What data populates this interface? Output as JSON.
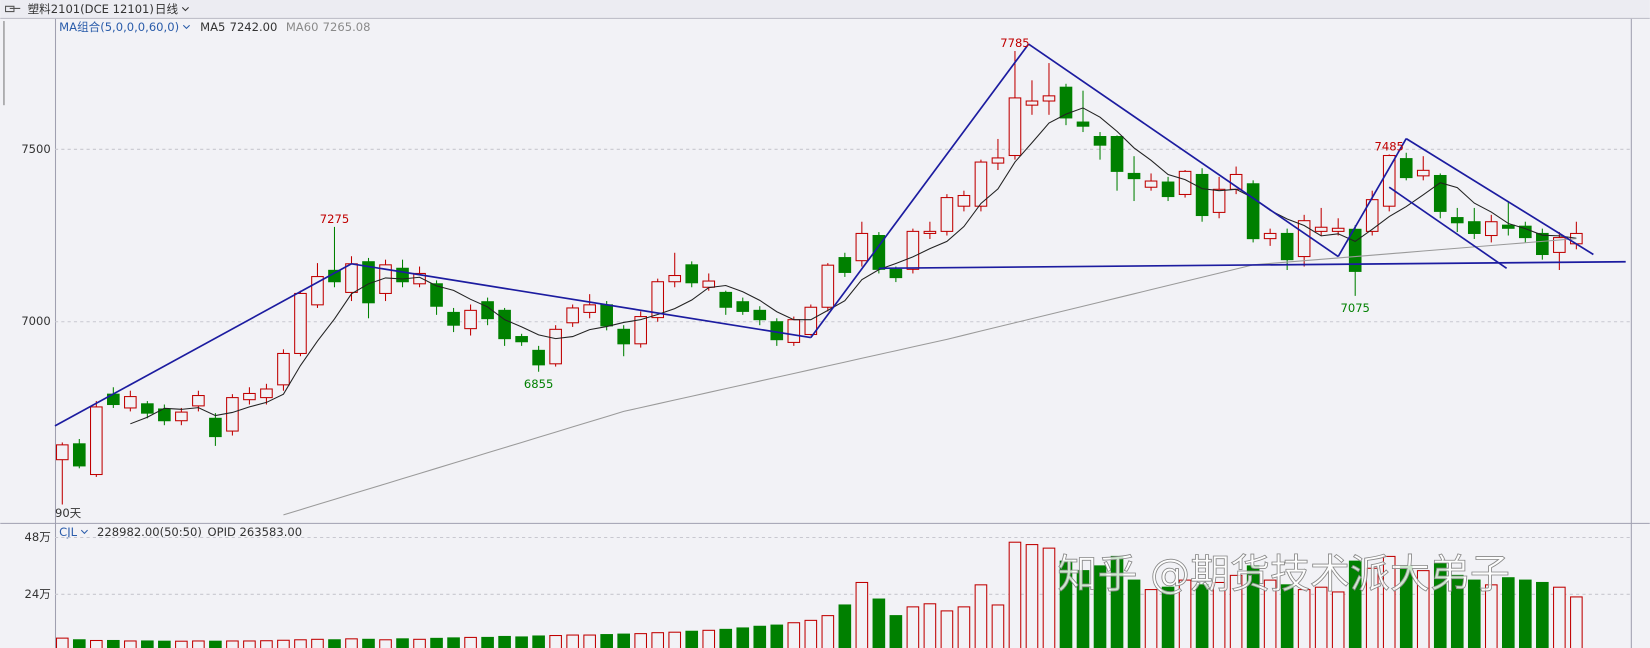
{
  "chart_data": {
    "type": "candlestick",
    "title": "塑料2101(DCE 12101)",
    "period": "日线",
    "indicator": "MA组合(5,0,0,0,60,0)",
    "span_label": "90天",
    "categories": [
      null,
      null,
      null,
      null,
      null,
      null,
      null,
      null,
      null,
      null,
      null,
      null,
      null,
      null,
      null,
      null,
      null,
      null,
      null,
      null,
      null,
      null,
      null,
      null,
      null,
      null,
      null,
      null,
      null,
      null,
      null,
      null,
      null,
      null,
      null,
      null,
      null,
      null,
      null,
      null,
      null,
      null,
      null,
      null,
      null,
      null,
      null,
      null,
      null,
      null,
      null,
      null,
      null,
      null,
      null,
      null,
      null,
      null,
      null,
      null,
      null,
      null,
      null,
      null,
      null,
      null,
      null,
      null,
      null,
      null,
      null,
      null,
      null,
      null,
      null,
      null,
      null,
      null,
      null,
      null,
      null,
      null,
      null,
      null,
      null,
      null,
      null,
      null,
      null,
      null
    ],
    "open": [
      6600,
      6646,
      6557,
      6790,
      6750,
      6762,
      6747,
      6713,
      6756,
      6720,
      6683,
      6774,
      6780,
      6817,
      6908,
      7049,
      7149,
      7085,
      7174,
      7082,
      7155,
      7110,
      7110,
      7027,
      6980,
      7058,
      7033,
      6957,
      6917,
      6878,
      6997,
      7027,
      7049,
      6978,
      6936,
      7012,
      7116,
      7165,
      7100,
      7085,
      7058,
      7033,
      7000,
      6940,
      6963,
      7042,
      7186,
      7177,
      7250,
      7152,
      7152,
      7256,
      7262,
      7335,
      7335,
      7460,
      7482,
      7628,
      7640,
      7680,
      7579,
      7537,
      7537,
      7430,
      7390,
      7405,
      7369,
      7427,
      7317,
      7384,
      7400,
      7241,
      7256,
      7189,
      7262,
      7262,
      7268,
      7262,
      7335,
      7473,
      7423,
      7424,
      7302,
      7290,
      7250,
      7280,
      7277,
      7256,
      7201,
      7226
    ],
    "high": [
      6650,
      6660,
      6770,
      6810,
      6800,
      6770,
      6760,
      6750,
      6800,
      6735,
      6790,
      6810,
      6820,
      6920,
      7090,
      7170,
      7275,
      7190,
      7185,
      7180,
      7180,
      7160,
      7120,
      7040,
      7050,
      7070,
      7040,
      6965,
      6930,
      6990,
      7050,
      7080,
      7060,
      6990,
      7030,
      7125,
      7200,
      7175,
      7140,
      7090,
      7070,
      7045,
      7010,
      7015,
      7050,
      7170,
      7200,
      7290,
      7260,
      7160,
      7270,
      7290,
      7370,
      7380,
      7470,
      7530,
      7785,
      7700,
      7750,
      7690,
      7670,
      7550,
      7540,
      7480,
      7430,
      7420,
      7440,
      7445,
      7420,
      7450,
      7410,
      7270,
      7270,
      7310,
      7330,
      7300,
      7280,
      7380,
      7485,
      7490,
      7480,
      7430,
      7330,
      7330,
      7310,
      7350,
      7290,
      7270,
      7260,
      7290
    ],
    "low": [
      6470,
      6575,
      6550,
      6750,
      6740,
      6720,
      6700,
      6700,
      6740,
      6640,
      6670,
      6760,
      6760,
      6800,
      6900,
      7040,
      7100,
      7060,
      7010,
      7060,
      7100,
      7100,
      7020,
      6970,
      6960,
      6990,
      6930,
      6930,
      6855,
      6870,
      6985,
      7010,
      6975,
      6900,
      6925,
      7000,
      7100,
      7100,
      7090,
      7020,
      7020,
      6990,
      6930,
      6930,
      6960,
      7030,
      7130,
      7160,
      7140,
      7115,
      7140,
      7240,
      7250,
      7320,
      7320,
      7440,
      7470,
      7600,
      7600,
      7570,
      7550,
      7470,
      7380,
      7350,
      7380,
      7350,
      7360,
      7290,
      7300,
      7370,
      7230,
      7220,
      7150,
      7160,
      7250,
      7250,
      7075,
      7250,
      7320,
      7410,
      7410,
      7300,
      7260,
      7240,
      7230,
      7250,
      7230,
      7180,
      7150,
      7210
    ],
    "close": [
      6643,
      6582,
      6753,
      6760,
      6783,
      6735,
      6713,
      6738,
      6786,
      6667,
      6780,
      6792,
      6805,
      6908,
      7082,
      7131,
      7116,
      7168,
      7055,
      7165,
      7116,
      7140,
      7045,
      6990,
      7033,
      7009,
      6951,
      6942,
      6875,
      6978,
      7040,
      7049,
      6988,
      6936,
      7015,
      7116,
      7134,
      7113,
      7118,
      7042,
      7030,
      7006,
      6948,
      7006,
      7042,
      7164,
      7143,
      7256,
      7152,
      7128,
      7262,
      7262,
      7360,
      7366,
      7463,
      7475,
      7649,
      7640,
      7655,
      7591,
      7567,
      7512,
      7436,
      7415,
      7408,
      7363,
      7436,
      7308,
      7384,
      7427,
      7241,
      7256,
      7180,
      7293,
      7274,
      7271,
      7146,
      7354,
      7482,
      7418,
      7439,
      7320,
      7287,
      7256,
      7290,
      7271,
      7244,
      7195,
      7244,
      7256
    ],
    "up_color": "#c00000",
    "down_color": "#008000",
    "series": [
      {
        "name": "MA5",
        "value_label": "7242.00",
        "color": "#222222",
        "label_color": "#333333",
        "values": [
          null,
          null,
          null,
          null,
          6704,
          6723,
          6749,
          6746,
          6751,
          6728,
          6737,
          6753,
          6766,
          6790,
          6873,
          6944,
          7008,
          7081,
          7110,
          7127,
          7124,
          7129,
          7104,
          7091,
          7065,
          7043,
          7006,
          6985,
          6962,
          6951,
          6957,
          6977,
          6986,
          6998,
          7006,
          7021,
          7038,
          7063,
          7099,
          7105,
          7087,
          7062,
          7029,
          7006,
          7006,
          7033,
          7061,
          7122,
          7151,
          7169,
          7188,
          7212,
          7233,
          7276,
          7343,
          7385,
          7463,
          7519,
          7576,
          7602,
          7620,
          7593,
          7552,
          7504,
          7468,
          7427,
          7412,
          7386,
          7380,
          7384,
          7359,
          7323,
          7298,
          7279,
          7249,
          7255,
          7233,
          7268,
          7305,
          7334,
          7368,
          7403,
          7389,
          7344,
          7318,
          7285,
          7270,
          7251,
          7249,
          7242
        ]
      },
      {
        "name": "MA60",
        "value_label": "7265.08",
        "color": "#9a9a9a",
        "label_color": "#8a8a8a",
        "values": [
          null,
          null,
          null,
          null,
          null,
          null,
          null,
          null,
          null,
          null,
          null,
          null,
          null,
          6440,
          6455,
          6470,
          6485,
          6500,
          6515,
          6530,
          6545,
          6560,
          6575,
          6590,
          6605,
          6620,
          6635,
          6650,
          6665,
          6680,
          6695,
          6710,
          6725,
          6740,
          6751,
          6762,
          6773,
          6784,
          6795,
          6806,
          6817,
          6828,
          6839,
          6850,
          6861,
          6872,
          6883,
          6894,
          6905,
          6916,
          6927,
          6938,
          6949,
          6961,
          6973,
          6985,
          6997,
          7009,
          7021,
          7033,
          7045,
          7057,
          7069,
          7081,
          7093,
          7105,
          7117,
          7129,
          7141,
          7153,
          7165,
          7169,
          7173,
          7177,
          7181,
          7185,
          7189,
          7193,
          7197,
          7201,
          7205,
          7209,
          7213,
          7217,
          7221,
          7225,
          7229,
          7233,
          7237,
          7241
        ]
      }
    ],
    "xlim": [
      -0.43,
      92.2
    ],
    "ylim": [
      6420,
      7878
    ],
    "yticks": [
      7500,
      7000
    ],
    "grid": true,
    "trend_color": "#1c1ca0",
    "trend_lines": [
      {
        "x": [
          -0.43,
          17.0
        ],
        "y": [
          6698,
          7168
        ]
      },
      {
        "x": [
          17.0,
          44.0
        ],
        "y": [
          7168,
          6954
        ]
      },
      {
        "x": [
          44.0,
          56.8
        ],
        "y": [
          6954,
          7805
        ]
      },
      {
        "x": [
          56.8,
          75.0
        ],
        "y": [
          7805,
          7189
        ]
      },
      {
        "x": [
          75.0,
          79.0
        ],
        "y": [
          7189,
          7531
        ]
      },
      {
        "x": [
          79.0,
          90.0
        ],
        "y": [
          7531,
          7195
        ]
      },
      {
        "x": [
          78.0,
          84.9
        ],
        "y": [
          7390,
          7155
        ]
      },
      {
        "x": [
          48.0,
          91.9
        ],
        "y": [
          7155,
          7174
        ]
      }
    ],
    "annotations": [
      {
        "index": 16,
        "value": 7275,
        "kind": "high"
      },
      {
        "index": 28,
        "value": 6855,
        "kind": "low"
      },
      {
        "index": 56,
        "value": 7785,
        "kind": "high"
      },
      {
        "index": 76,
        "value": 7075,
        "kind": "low"
      },
      {
        "index": 78,
        "value": 7485,
        "kind": "high"
      }
    ],
    "volume": {
      "name": "CJL",
      "info": "228982.00(50:50)",
      "opid": "OPID 263583.00",
      "values": [
        5.5,
        4.8,
        4.5,
        4.5,
        4.3,
        4.3,
        4.2,
        4.2,
        4.3,
        4.2,
        4.3,
        4.3,
        4.4,
        4.6,
        4.8,
        5.0,
        4.8,
        5.2,
        5.0,
        4.8,
        5.2,
        5.0,
        5.4,
        5.6,
        5.8,
        5.8,
        6.2,
        6.0,
        6.4,
        6.6,
        6.8,
        6.8,
        7.0,
        7.2,
        7.4,
        7.8,
        8.0,
        8.4,
        8.8,
        9.2,
        9.8,
        10.5,
        11.0,
        12.0,
        13.0,
        15.0,
        19.5,
        29.0,
        22.0,
        15.0,
        18.7,
        20.0,
        17.0,
        18.7,
        28.0,
        19.5,
        46.0,
        45.0,
        43.5,
        38.0,
        34.0,
        36.0,
        40.0,
        30.0,
        26.0,
        27.0,
        30.0,
        28.0,
        29.0,
        32.0,
        36.0,
        30.0,
        28.0,
        26.0,
        27.0,
        25.0,
        38.0,
        35.0,
        40.0,
        36.0,
        34.0,
        37.0,
        32.0,
        30.0,
        28.0,
        31.0,
        30.0,
        29.0,
        27.0,
        22.9
      ],
      "ylim": [
        0,
        53.3
      ],
      "yticks": [
        {
          "value": 48,
          "label": "48万"
        },
        {
          "value": 24,
          "label": "24万"
        }
      ]
    },
    "watermark": "知乎 @期货技术派大弟子"
  }
}
